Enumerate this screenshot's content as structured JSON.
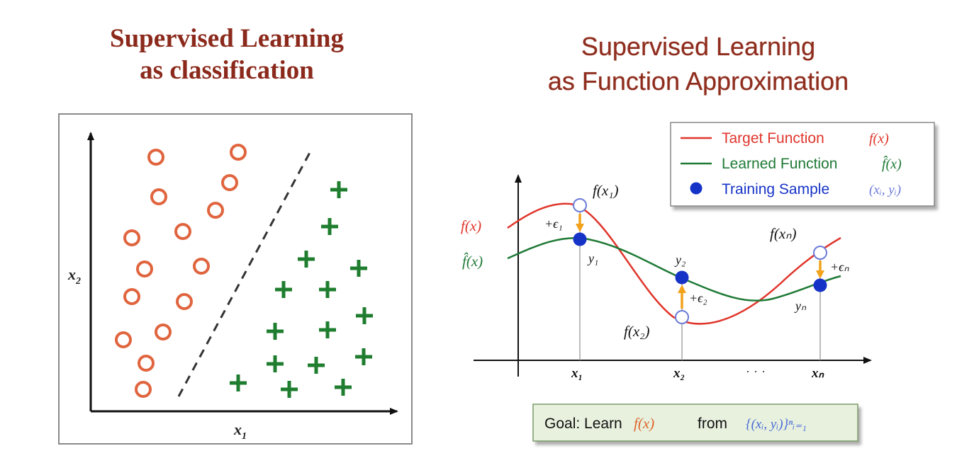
{
  "left": {
    "title_line1": "Supervised Learning",
    "title_line2": "as classification",
    "x_axis_label": "x",
    "x_axis_sub": "1",
    "y_axis_label": "x",
    "y_axis_sub": "2",
    "circle_color": "#e0653f",
    "plus_color": "#1e7d2e",
    "circles": [
      [
        220,
        222
      ],
      [
        336,
        215
      ],
      [
        224,
        278
      ],
      [
        324,
        258
      ],
      [
        304,
        297
      ],
      [
        186,
        336
      ],
      [
        258,
        327
      ],
      [
        204,
        380
      ],
      [
        284,
        376
      ],
      [
        186,
        419
      ],
      [
        260,
        426
      ],
      [
        230,
        469
      ],
      [
        174,
        480
      ],
      [
        206,
        513
      ],
      [
        202,
        550
      ]
    ],
    "pluses": [
      [
        478,
        268
      ],
      [
        465,
        320
      ],
      [
        432,
        366
      ],
      [
        506,
        379
      ],
      [
        400,
        409
      ],
      [
        462,
        409
      ],
      [
        514,
        446
      ],
      [
        388,
        468
      ],
      [
        462,
        466
      ],
      [
        388,
        514
      ],
      [
        446,
        516
      ],
      [
        513,
        504
      ],
      [
        336,
        541
      ],
      [
        408,
        550
      ],
      [
        484,
        547
      ]
    ]
  },
  "right": {
    "title_line1": "Supervised Learning",
    "title_line2": "as Function Approximation",
    "legend": {
      "target": "Target Function",
      "target_math": "f(x)",
      "learned": "Learned Function",
      "learned_math": "f̂(x)",
      "sample": "Training Sample",
      "sample_math": "(xᵢ, yᵢ)"
    },
    "colors": {
      "target": "#e0352b",
      "learned": "#1f7a36",
      "sample": "#1633c8",
      "arrow": "#f2a21c"
    },
    "labels": {
      "fx_left": "f(x)",
      "fhat_left": "f̂(x)",
      "fx1": "f(x₁)",
      "fx2": "f(x₂)",
      "fxn": "f(xₙ)",
      "eps1": "+ϵ₁",
      "eps2": "+ϵ₂",
      "epsn": "+ϵₙ",
      "y1": "y₁",
      "y2": "y₂",
      "yn": "yₙ",
      "x1": "x₁",
      "x2": "x₂",
      "dots": "· · ·",
      "xn": "xₙ"
    },
    "goal": {
      "prefix": "Goal: Learn",
      "math1": "f(x)",
      "middle": "from",
      "math2": "{(xᵢ, yᵢ)}ⁿᵢ₌₁"
    }
  }
}
